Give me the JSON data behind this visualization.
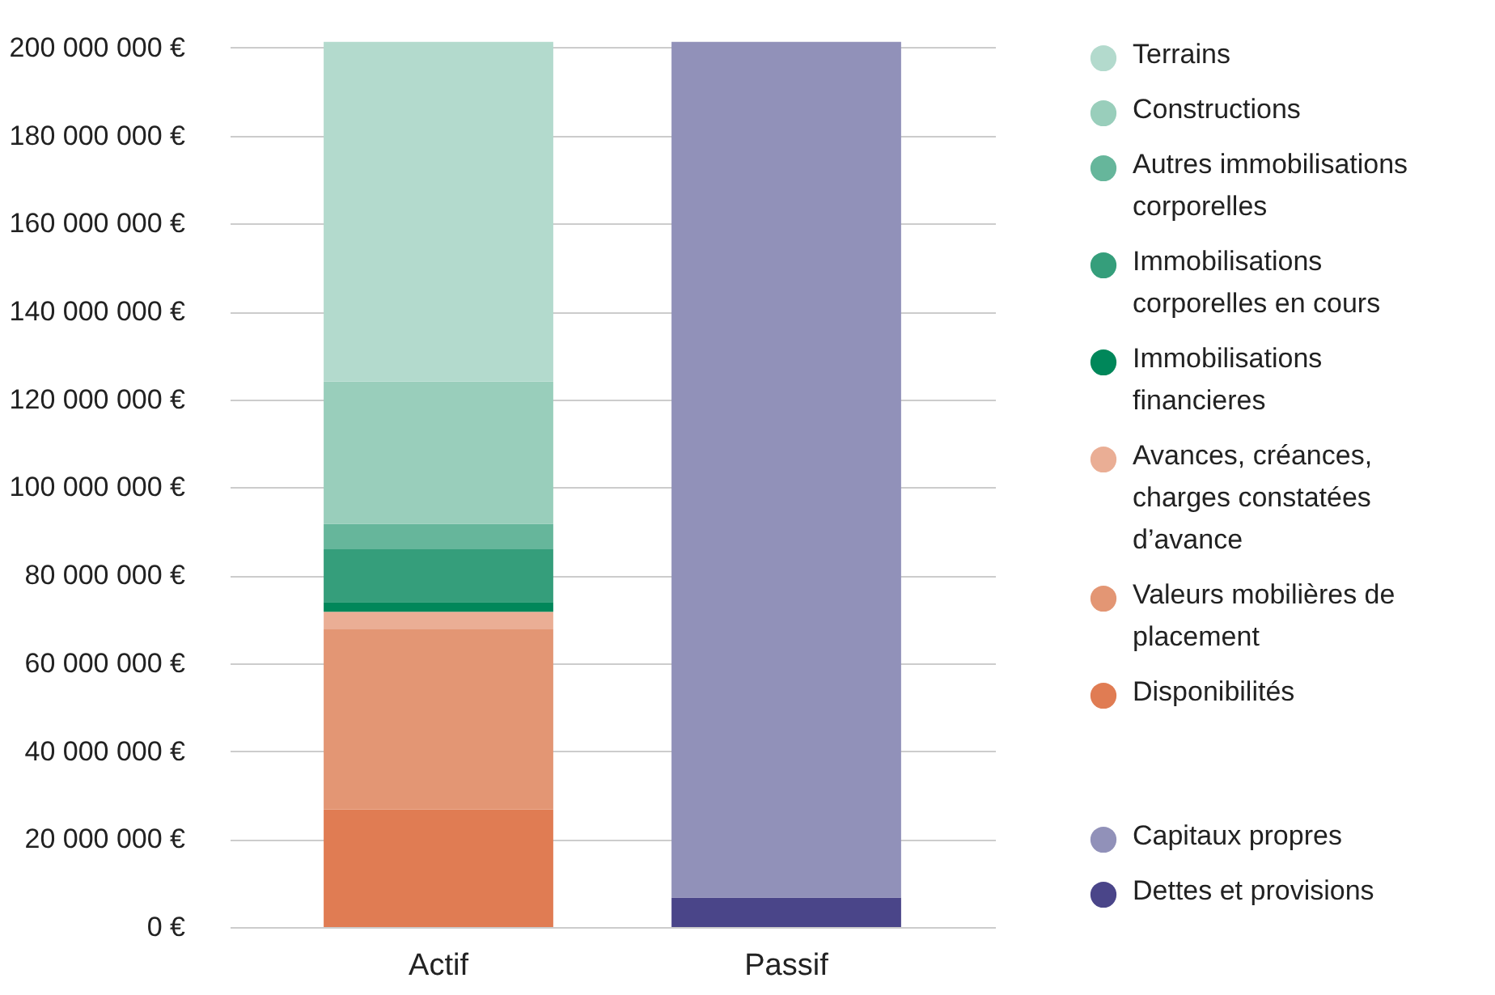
{
  "chart_data": {
    "type": "bar",
    "stacked": true,
    "categories": [
      "Actif",
      "Passif"
    ],
    "series": [
      {
        "name": "Disponibilités",
        "color": "#e07c53",
        "values": [
          26700000,
          null
        ]
      },
      {
        "name": "Valeurs mobilières de placement",
        "color": "#e39674",
        "values": [
          41000000,
          null
        ]
      },
      {
        "name": "Avances, créances, charges constatées d’avance",
        "color": "#eaae95",
        "values": [
          4000000,
          null
        ]
      },
      {
        "name": "Immobilisations financieres",
        "color": "#00875a",
        "values": [
          2200000,
          null
        ]
      },
      {
        "name": "Immobilisations corporelles en cours",
        "color": "#359e7b",
        "values": [
          12000000,
          null
        ]
      },
      {
        "name": "Autres immobilisations corporelles",
        "color": "#66b69b",
        "values": [
          5800000,
          null
        ]
      },
      {
        "name": "Constructions",
        "color": "#99cebb",
        "values": [
          32400000,
          null
        ]
      },
      {
        "name": "Terrains",
        "color": "#b3dacd",
        "values": [
          77200000,
          null
        ]
      },
      {
        "name": "Dettes et provisions",
        "color": "#4a4589",
        "values": [
          null,
          6700000
        ]
      },
      {
        "name": "Capitaux propres",
        "color": "#9191b9",
        "values": [
          null,
          194600000
        ]
      }
    ],
    "ylim": [
      0,
      202000000
    ],
    "yticks": [
      {
        "value": 0,
        "label": "0 €"
      },
      {
        "value": 20000000,
        "label": "20 000 000 €"
      },
      {
        "value": 40000000,
        "label": "40 000 000 €"
      },
      {
        "value": 60000000,
        "label": "60 000 000 €"
      },
      {
        "value": 80000000,
        "label": "80 000 000 €"
      },
      {
        "value": 100000000,
        "label": "100 000 000 €"
      },
      {
        "value": 120000000,
        "label": "120 000 000 €"
      },
      {
        "value": 140000000,
        "label": "140 000 000 €"
      },
      {
        "value": 160000000,
        "label": "160 000 000 €"
      },
      {
        "value": 180000000,
        "label": "180 000 000 €"
      },
      {
        "value": 200000000,
        "label": "200 000 000 €"
      }
    ],
    "grid": "y",
    "legend": "right"
  }
}
